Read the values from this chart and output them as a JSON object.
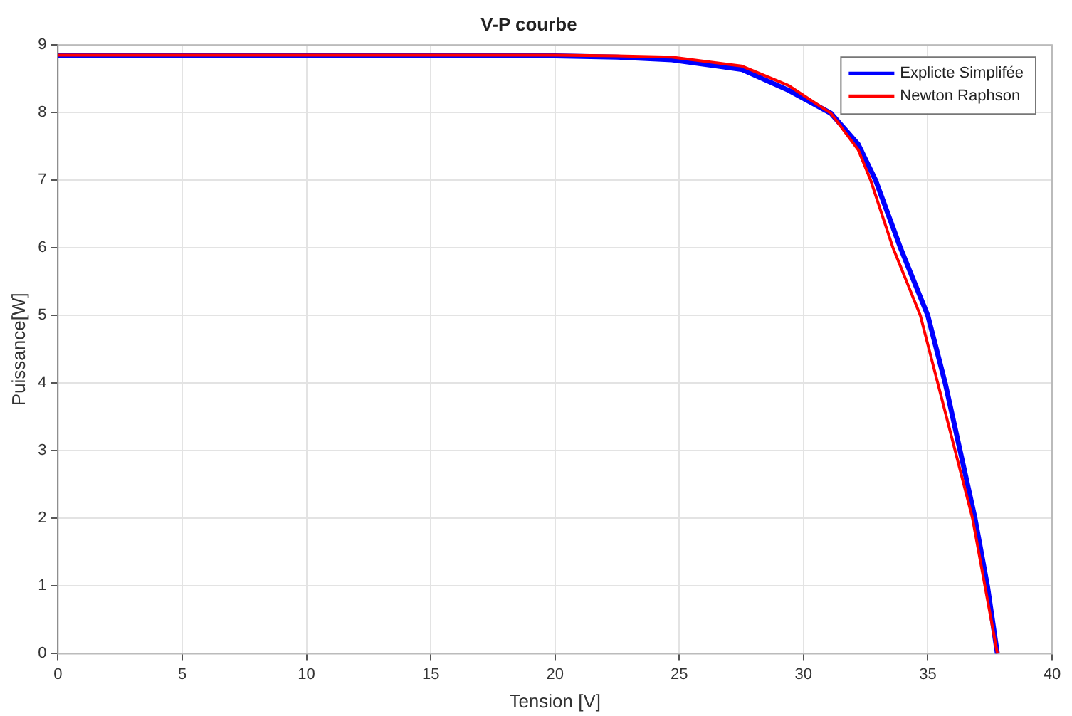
{
  "chart_data": {
    "type": "line",
    "title": "V-P courbe",
    "xlabel": "Tension [V]",
    "ylabel": "Puissance[W]",
    "xlim": [
      0,
      40
    ],
    "xticks": [
      0,
      5,
      10,
      15,
      20,
      25,
      30,
      35,
      40
    ],
    "ylim": [
      0,
      9
    ],
    "yticks": [
      0,
      1,
      2,
      3,
      4,
      5,
      6,
      7,
      8,
      9
    ],
    "grid": true,
    "legend": "top right",
    "marker": "none",
    "line_style": "solid",
    "series": [
      {
        "name": "Explicte Simplifée",
        "color": "#0000ff",
        "x": [
          0,
          10,
          18,
          20,
          22.5,
          24.7,
          27.5,
          29.4,
          31.1,
          32.2,
          32.9,
          33.9,
          35,
          35.7,
          36.3,
          36.9,
          37.4,
          37.8
        ],
        "values": [
          8.85,
          8.85,
          8.85,
          8.84,
          8.82,
          8.78,
          8.64,
          8.33,
          7.99,
          7.53,
          7,
          6,
          5,
          4,
          3,
          2,
          1,
          0
        ]
      },
      {
        "name": "Newton Raphson",
        "color": "#ff0000",
        "x": [
          0,
          10,
          18,
          20,
          22.5,
          24.7,
          27.5,
          29.4,
          31.1,
          32.2,
          32.7,
          33.6,
          34.7,
          35.4,
          36.1,
          36.8,
          37.3,
          37.8
        ],
        "values": [
          8.85,
          8.85,
          8.85,
          8.85,
          8.84,
          8.82,
          8.69,
          8.4,
          7.99,
          7.45,
          7,
          6,
          5,
          4,
          3,
          2,
          1,
          0
        ]
      }
    ]
  }
}
